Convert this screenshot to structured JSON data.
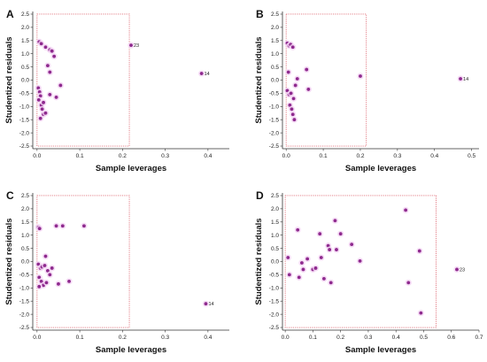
{
  "colors": {
    "point": "#8e2a8e",
    "point_halo": "#f4d4f4",
    "bound": "#e0707a",
    "axis": "#333333"
  },
  "chart_data": [
    {
      "type": "scatter",
      "panel_label": "A",
      "xlabel": "Sample leverages",
      "ylabel": "Studentized residuals",
      "xlim": [
        -0.01,
        0.45
      ],
      "ylim": [
        -2.6,
        2.6
      ],
      "xticks": [
        0.0,
        0.1,
        0.2,
        0.3,
        0.4
      ],
      "xtick_labels": [
        "0.0",
        "0.1",
        "0.2",
        "0.3",
        "0.4"
      ],
      "yticks": [
        -2.5,
        -2.0,
        -1.5,
        -1.0,
        -0.5,
        0.0,
        0.5,
        1.0,
        1.5,
        2.0,
        2.5
      ],
      "ytick_labels": [
        "-2.5",
        "-2.0",
        "-1.5",
        "-1.0",
        "-0.5",
        "0.0",
        "0.5",
        "1.0",
        "1.5",
        "2.0",
        "2.5"
      ],
      "bounds": {
        "x": [
          0.0,
          0.216
        ],
        "y": [
          -2.5,
          2.5
        ]
      },
      "points": [
        [
          0.005,
          1.45
        ],
        [
          0.01,
          1.38
        ],
        [
          0.02,
          1.25
        ],
        [
          0.03,
          1.15
        ],
        [
          0.035,
          1.1
        ],
        [
          0.04,
          0.9
        ],
        [
          0.025,
          0.55
        ],
        [
          0.03,
          0.3
        ],
        [
          0.003,
          -0.3
        ],
        [
          0.006,
          -0.45
        ],
        [
          0.008,
          -0.6
        ],
        [
          0.004,
          -0.75
        ],
        [
          0.01,
          -0.95
        ],
        [
          0.012,
          -1.1
        ],
        [
          0.015,
          -1.3
        ],
        [
          0.008,
          -1.45
        ],
        [
          0.02,
          -1.25
        ],
        [
          0.045,
          -0.65
        ],
        [
          0.055,
          -0.2
        ],
        [
          0.015,
          -0.85
        ],
        [
          0.03,
          -0.55
        ],
        [
          0.22,
          1.32
        ],
        [
          0.385,
          0.25
        ]
      ],
      "labeled_points": [
        {
          "x": 0.22,
          "y": 1.32,
          "label": "23"
        },
        {
          "x": 0.385,
          "y": 0.25,
          "label": "14"
        }
      ]
    },
    {
      "type": "scatter",
      "panel_label": "B",
      "xlabel": "Sample leverages",
      "ylabel": "Studentized residuals",
      "xlim": [
        -0.01,
        0.52
      ],
      "ylim": [
        -2.6,
        2.6
      ],
      "xticks": [
        0.0,
        0.1,
        0.2,
        0.3,
        0.4,
        0.5
      ],
      "xtick_labels": [
        "0.0",
        "0.1",
        "0.2",
        "0.3",
        "0.4",
        "0.5"
      ],
      "yticks": [
        -2.5,
        -2.0,
        -1.5,
        -1.0,
        -0.5,
        0.0,
        0.5,
        1.0,
        1.5,
        2.0,
        2.5
      ],
      "ytick_labels": [
        "-2.5",
        "-2.0",
        "-1.5",
        "-1.0",
        "-0.5",
        "0.0",
        "0.5",
        "1.0",
        "1.5",
        "2.0",
        "2.5"
      ],
      "bounds": {
        "x": [
          0.0,
          0.216
        ],
        "y": [
          -2.5,
          2.5
        ]
      },
      "points": [
        [
          0.003,
          1.4
        ],
        [
          0.008,
          1.3
        ],
        [
          0.012,
          1.35
        ],
        [
          0.018,
          1.25
        ],
        [
          0.006,
          0.3
        ],
        [
          0.003,
          -0.4
        ],
        [
          0.008,
          -0.55
        ],
        [
          0.013,
          -0.5
        ],
        [
          0.02,
          -0.7
        ],
        [
          0.01,
          -0.95
        ],
        [
          0.015,
          -1.1
        ],
        [
          0.018,
          -1.3
        ],
        [
          0.022,
          -1.5
        ],
        [
          0.03,
          0.05
        ],
        [
          0.055,
          0.4
        ],
        [
          0.06,
          -0.35
        ],
        [
          0.025,
          -0.2
        ],
        [
          0.2,
          0.15
        ],
        [
          0.47,
          0.05
        ]
      ],
      "labeled_points": [
        {
          "x": 0.47,
          "y": 0.05,
          "label": "14"
        }
      ]
    },
    {
      "type": "scatter",
      "panel_label": "C",
      "xlabel": "Sample leverages",
      "ylabel": "Studentized residuals",
      "xlim": [
        -0.01,
        0.45
      ],
      "ylim": [
        -2.6,
        2.6
      ],
      "xticks": [
        0.0,
        0.1,
        0.2,
        0.3,
        0.4
      ],
      "xtick_labels": [
        "0.0",
        "0.1",
        "0.2",
        "0.3",
        "0.4"
      ],
      "yticks": [
        -2.5,
        -2.0,
        -1.5,
        -1.0,
        -0.5,
        0.0,
        0.5,
        1.0,
        1.5,
        2.0,
        2.5
      ],
      "ytick_labels": [
        "-2.5",
        "-2.0",
        "-1.5",
        "-1.0",
        "-0.5",
        "0.0",
        "0.5",
        "1.0",
        "1.5",
        "2.0",
        "2.5"
      ],
      "bounds": {
        "x": [
          0.0,
          0.216
        ],
        "y": [
          -2.5,
          2.5
        ]
      },
      "points": [
        [
          0.003,
          1.3
        ],
        [
          0.006,
          1.25
        ],
        [
          0.045,
          1.35
        ],
        [
          0.06,
          1.35
        ],
        [
          0.11,
          1.35
        ],
        [
          0.02,
          0.2
        ],
        [
          0.003,
          -0.1
        ],
        [
          0.008,
          -0.25
        ],
        [
          0.012,
          -0.2
        ],
        [
          0.018,
          -0.15
        ],
        [
          0.025,
          -0.35
        ],
        [
          0.03,
          -0.5
        ],
        [
          0.005,
          -0.6
        ],
        [
          0.01,
          -0.75
        ],
        [
          0.015,
          -0.9
        ],
        [
          0.022,
          -0.8
        ],
        [
          0.005,
          -0.95
        ],
        [
          0.05,
          -0.85
        ],
        [
          0.075,
          -0.75
        ],
        [
          0.035,
          -0.25
        ],
        [
          0.395,
          -1.6
        ]
      ],
      "labeled_points": [
        {
          "x": 0.395,
          "y": -1.6,
          "label": "14"
        }
      ]
    },
    {
      "type": "scatter",
      "panel_label": "D",
      "xlabel": "Sample leverages",
      "ylabel": "Studentized residuals",
      "xlim": [
        -0.01,
        0.7
      ],
      "ylim": [
        -2.6,
        2.6
      ],
      "xticks": [
        0.0,
        0.1,
        0.2,
        0.3,
        0.4,
        0.5,
        0.6,
        0.7
      ],
      "xtick_labels": [
        "0.0",
        "0.1",
        "0.2",
        "0.3",
        "0.4",
        "0.5",
        "0.6",
        "0.7"
      ],
      "yticks": [
        -2.5,
        -2.0,
        -1.5,
        -1.0,
        -0.5,
        0.0,
        0.5,
        1.0,
        1.5,
        2.0,
        2.5
      ],
      "ytick_labels": [
        "-2.5",
        "-2.0",
        "-1.5",
        "-1.0",
        "-0.5",
        "0.0",
        "0.5",
        "1.0",
        "1.5",
        "2.0",
        "2.5"
      ],
      "bounds": {
        "x": [
          0.0,
          0.545
        ],
        "y": [
          -2.5,
          2.5
        ]
      },
      "points": [
        [
          0.01,
          0.15
        ],
        [
          0.015,
          -0.5
        ],
        [
          0.045,
          1.2
        ],
        [
          0.05,
          -0.6
        ],
        [
          0.06,
          -0.05
        ],
        [
          0.065,
          -0.3
        ],
        [
          0.08,
          0.1
        ],
        [
          0.1,
          -0.3
        ],
        [
          0.11,
          -0.25
        ],
        [
          0.125,
          1.05
        ],
        [
          0.13,
          0.15
        ],
        [
          0.14,
          -0.65
        ],
        [
          0.155,
          0.6
        ],
        [
          0.16,
          0.45
        ],
        [
          0.165,
          -0.8
        ],
        [
          0.18,
          1.55
        ],
        [
          0.185,
          0.45
        ],
        [
          0.2,
          1.05
        ],
        [
          0.24,
          0.65
        ],
        [
          0.27,
          0.02
        ],
        [
          0.435,
          1.95
        ],
        [
          0.445,
          -0.8
        ],
        [
          0.485,
          0.4
        ],
        [
          0.49,
          -1.95
        ],
        [
          0.62,
          -0.3
        ]
      ],
      "labeled_points": [
        {
          "x": 0.62,
          "y": -0.3,
          "label": "23"
        }
      ]
    }
  ]
}
